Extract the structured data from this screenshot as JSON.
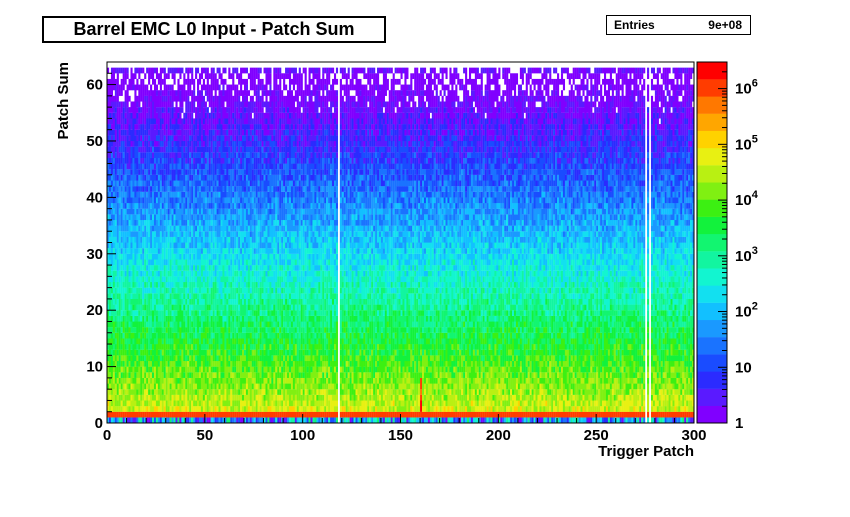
{
  "chart_data": {
    "type": "heatmap",
    "title": "Barrel EMC L0 Input - Patch Sum",
    "xlabel": "Trigger Patch",
    "ylabel": "Patch Sum",
    "xlim": [
      0,
      300
    ],
    "ylim": [
      0,
      64
    ],
    "x_ticks": [
      "0",
      "50",
      "100",
      "150",
      "200",
      "250",
      "300"
    ],
    "x_tick_values": [
      0,
      50,
      100,
      150,
      200,
      250,
      300
    ],
    "y_ticks": [
      "0",
      "10",
      "20",
      "30",
      "40",
      "50",
      "60"
    ],
    "y_tick_values": [
      0,
      10,
      20,
      30,
      40,
      50,
      60
    ],
    "z_scale": "log",
    "z_range": [
      1,
      3000000
    ],
    "z_tick_values": [
      1,
      10,
      100,
      1000,
      10000,
      100000,
      1000000
    ],
    "z_tick_labels": [
      {
        "base": "1",
        "exp": ""
      },
      {
        "base": "10",
        "exp": ""
      },
      {
        "base": "10",
        "exp": "2"
      },
      {
        "base": "10",
        "exp": "3"
      },
      {
        "base": "10",
        "exp": "4"
      },
      {
        "base": "10",
        "exp": "5"
      },
      {
        "base": "10",
        "exp": "6"
      }
    ],
    "stats": {
      "entries_label": "Entries",
      "entries_value": "9e+08"
    },
    "colors": {
      "palette": [
        "#8000ff",
        "#5a1aff",
        "#2b2bff",
        "#1a4cff",
        "#1a73ff",
        "#1a99ff",
        "#12c0ff",
        "#12e0f0",
        "#12f5d0",
        "#12f5a0",
        "#12f570",
        "#12f23c",
        "#3cf012",
        "#80f012",
        "#b9f012",
        "#e8f012",
        "#ffd200",
        "#ffa600",
        "#ff7800",
        "#ff3c00",
        "#ff0000"
      ]
    },
    "features": {
      "hot_band_patch_sum": 1,
      "dead_patches": [
        118,
        275,
        277
      ],
      "hot_patches": [
        160
      ]
    }
  }
}
